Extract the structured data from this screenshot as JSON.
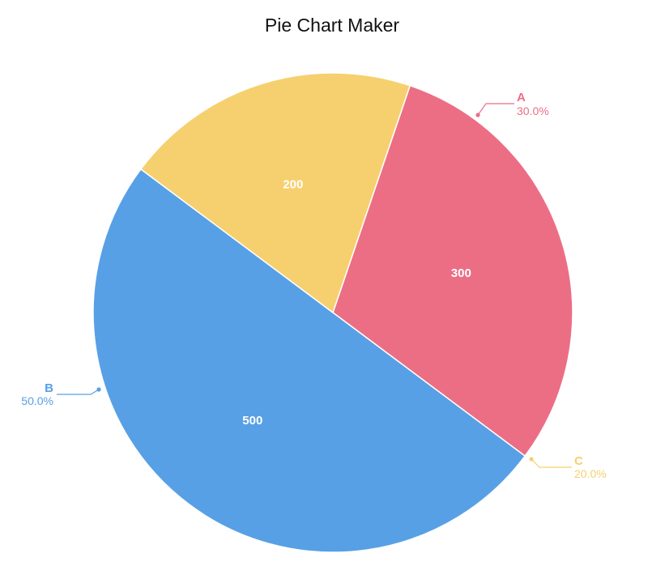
{
  "chart_data": {
    "type": "pie",
    "title": "Pie Chart Maker",
    "categories": [
      "A",
      "B",
      "C"
    ],
    "values": [
      300,
      500,
      200
    ],
    "value_labels": [
      "300",
      "500",
      "200"
    ],
    "percent_labels": [
      "30.0%",
      "50.0%",
      "20.0%"
    ],
    "colors": [
      "#EC6E85",
      "#57A0E5",
      "#F6D06F"
    ],
    "legend": "none"
  }
}
